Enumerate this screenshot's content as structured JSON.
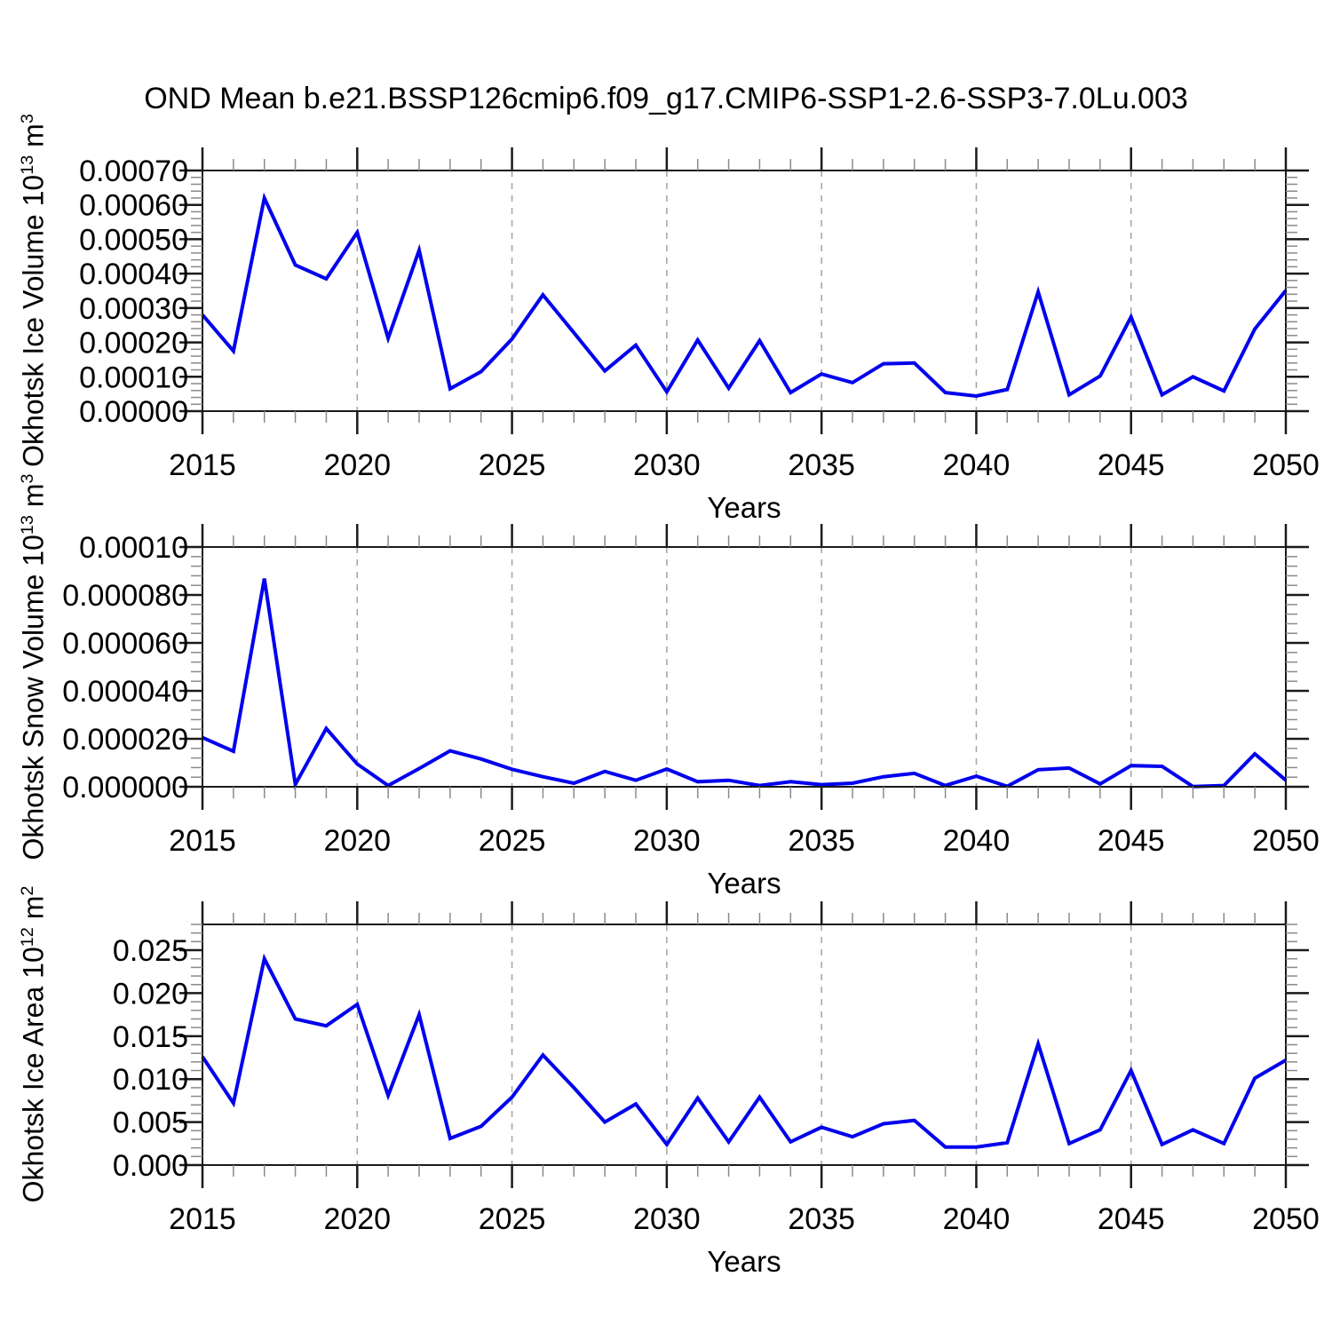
{
  "title": "OND Mean b.e21.BSSP126cmip6.f09_g17.CMIP6-SSP1-2.6-SSP3-7.0Lu.003",
  "line_color": "#0000ee",
  "grid_color": "#a3a3a3",
  "chart_data": [
    {
      "id": "ice_volume",
      "type": "line",
      "xlabel": "Years",
      "ylabel_parts": {
        "prefix": "Okhotsk Ice Volume 10",
        "exp": "13",
        "unit": " m",
        "unit_exp": "3"
      },
      "xlim": [
        2015,
        2050
      ],
      "ylim": [
        0,
        0.0007
      ],
      "x": [
        2015,
        2016,
        2017,
        2018,
        2019,
        2020,
        2021,
        2022,
        2023,
        2024,
        2025,
        2026,
        2027,
        2028,
        2029,
        2030,
        2031,
        2032,
        2033,
        2034,
        2035,
        2036,
        2037,
        2038,
        2039,
        2040,
        2041,
        2042,
        2043,
        2044,
        2045,
        2046,
        2047,
        2048,
        2049,
        2050
      ],
      "values": [
        0.00028,
        0.000175,
        0.00062,
        0.000425,
        0.000385,
        0.00052,
        0.000212,
        0.000468,
        6.5e-05,
        0.000115,
        0.00021,
        0.000338,
        0.000228,
        0.000117,
        0.000192,
        5.6e-05,
        0.000207,
        6.7e-05,
        0.000205,
        5.4e-05,
        0.000108,
        8.3e-05,
        0.000138,
        0.00014,
        5.4e-05,
        4.4e-05,
        6.3e-05,
        0.000347,
        4.75e-05,
        0.000102,
        0.000274,
        4.75e-05,
        0.0001,
        5.9e-05,
        0.000239,
        0.000351
      ],
      "xtick_values": [
        2015,
        2020,
        2025,
        2030,
        2035,
        2040,
        2045,
        2050
      ],
      "xtick_labels": [
        "2015",
        "2020",
        "2025",
        "2030",
        "2035",
        "2040",
        "2045",
        "2050"
      ],
      "x_minor_step": 1,
      "grid_x": [
        2020,
        2025,
        2030,
        2035,
        2040,
        2045
      ],
      "ytick_values": [
        0,
        0.0001,
        0.0002,
        0.0003,
        0.0004,
        0.0005,
        0.0006,
        0.0007
      ],
      "ytick_labels": [
        "0.00000",
        "0.00010",
        "0.00020",
        "0.00030",
        "0.00040",
        "0.00050",
        "0.00060",
        "0.00070"
      ],
      "y_minor_step": 2e-05
    },
    {
      "id": "snow_volume",
      "type": "line",
      "xlabel": "Years",
      "ylabel_parts": {
        "prefix": "Okhotsk Snow Volume 10",
        "exp": "13",
        "unit": " m",
        "unit_exp": "3"
      },
      "xlim": [
        2015,
        2050
      ],
      "ylim": [
        0,
        0.0001
      ],
      "x": [
        2015,
        2016,
        2017,
        2018,
        2019,
        2020,
        2021,
        2022,
        2023,
        2024,
        2025,
        2026,
        2027,
        2028,
        2029,
        2030,
        2031,
        2032,
        2033,
        2034,
        2035,
        2036,
        2037,
        2038,
        2039,
        2040,
        2041,
        2042,
        2043,
        2044,
        2045,
        2046,
        2047,
        2048,
        2049,
        2050
      ],
      "values": [
        2.05e-05,
        1.48e-05,
        8.68e-05,
        1e-06,
        2.43e-05,
        9.5e-06,
        5e-07,
        7.6e-06,
        1.5e-05,
        1.16e-05,
        7.3e-06,
        4.2e-06,
        1.5e-06,
        6.4e-06,
        2.7e-06,
        7.4e-06,
        2.1e-06,
        2.7e-06,
        5e-07,
        2.1e-06,
        9e-07,
        1.5e-06,
        4.2e-06,
        5.6e-06,
        5e-07,
        4.4e-06,
        2e-07,
        7.1e-06,
        7.8e-06,
        1.2e-06,
        8.8e-06,
        8.5e-06,
        1e-07,
        5e-07,
        1.37e-05,
        2.7e-06
      ],
      "xtick_values": [
        2015,
        2020,
        2025,
        2030,
        2035,
        2040,
        2045,
        2050
      ],
      "xtick_labels": [
        "2015",
        "2020",
        "2025",
        "2030",
        "2035",
        "2040",
        "2045",
        "2050"
      ],
      "x_minor_step": 1,
      "grid_x": [
        2020,
        2025,
        2030,
        2035,
        2040,
        2045
      ],
      "ytick_values": [
        0,
        2e-05,
        4e-05,
        6e-05,
        8e-05,
        0.0001
      ],
      "ytick_labels": [
        "0.000000",
        "0.000020",
        "0.000040",
        "0.000060",
        "0.000080",
        "0.00010"
      ],
      "y_minor_step": 4e-06
    },
    {
      "id": "ice_area",
      "type": "line",
      "xlabel": "Years",
      "ylabel_parts": {
        "prefix": "Okhotsk Ice Area 10",
        "exp": "12",
        "unit": " m",
        "unit_exp": "2"
      },
      "xlim": [
        2015,
        2050
      ],
      "ylim": [
        0,
        0.028
      ],
      "x": [
        2015,
        2016,
        2017,
        2018,
        2019,
        2020,
        2021,
        2022,
        2023,
        2024,
        2025,
        2026,
        2027,
        2028,
        2029,
        2030,
        2031,
        2032,
        2033,
        2034,
        2035,
        2036,
        2037,
        2038,
        2039,
        2040,
        2041,
        2042,
        2043,
        2044,
        2045,
        2046,
        2047,
        2048,
        2049,
        2050
      ],
      "values": [
        0.0126,
        0.0072,
        0.024,
        0.017,
        0.0162,
        0.0187,
        0.0081,
        0.0175,
        0.0031,
        0.0045,
        0.0079,
        0.0128,
        0.009,
        0.005,
        0.0071,
        0.0024,
        0.0078,
        0.0027,
        0.0079,
        0.0027,
        0.0044,
        0.0033,
        0.0048,
        0.0052,
        0.0021,
        0.0021,
        0.0026,
        0.0141,
        0.0025,
        0.0041,
        0.011,
        0.0024,
        0.0041,
        0.0025,
        0.0101,
        0.0122
      ],
      "xtick_values": [
        2015,
        2020,
        2025,
        2030,
        2035,
        2040,
        2045,
        2050
      ],
      "xtick_labels": [
        "2015",
        "2020",
        "2025",
        "2030",
        "2035",
        "2040",
        "2045",
        "2050"
      ],
      "x_minor_step": 1,
      "grid_x": [
        2020,
        2025,
        2030,
        2035,
        2040,
        2045
      ],
      "ytick_values": [
        0,
        0.005,
        0.01,
        0.015,
        0.02,
        0.025
      ],
      "ytick_labels": [
        "0.000",
        "0.005",
        "0.010",
        "0.015",
        "0.020",
        "0.025"
      ],
      "y_minor_step": 0.001
    }
  ]
}
